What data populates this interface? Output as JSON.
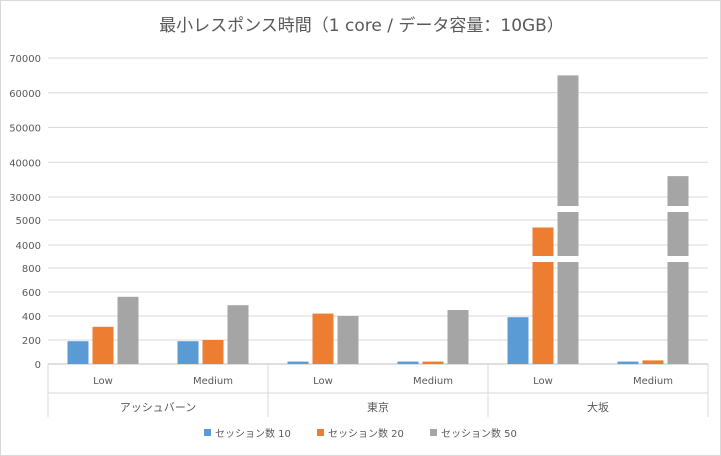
{
  "chart_data": {
    "type": "bar",
    "title": "最小レスポンス時間（1 core / データ容量：10GB）",
    "y_axis": {
      "broken": true,
      "ticks": [
        0,
        200,
        400,
        600,
        800,
        4000,
        5000,
        30000,
        40000,
        50000,
        60000,
        70000
      ],
      "tick_labels": [
        "0",
        "200",
        "400",
        "600",
        "800",
        "4000",
        "5000",
        "30000",
        "40000",
        "50000",
        "60000",
        "70000"
      ],
      "segments": [
        [
          0,
          800
        ],
        [
          4000,
          5000
        ],
        [
          30000,
          70000
        ]
      ]
    },
    "grid": true,
    "legend_position": "bottom",
    "groups": [
      "アッシュバーン",
      "東京",
      "大坂"
    ],
    "categories": [
      "Low",
      "Medium",
      "Low",
      "Medium",
      "Low",
      "Medium"
    ],
    "series": [
      {
        "name": "セッション数 10",
        "color": "#5b9bd5",
        "values": [
          190,
          190,
          20,
          20,
          390,
          20
        ]
      },
      {
        "name": "セッション数 20",
        "color": "#ed7d31",
        "values": [
          310,
          200,
          420,
          20,
          4700,
          30
        ]
      },
      {
        "name": "セッション数 50",
        "color": "#a5a5a5",
        "values": [
          560,
          490,
          400,
          450,
          65000,
          36000
        ]
      }
    ]
  }
}
